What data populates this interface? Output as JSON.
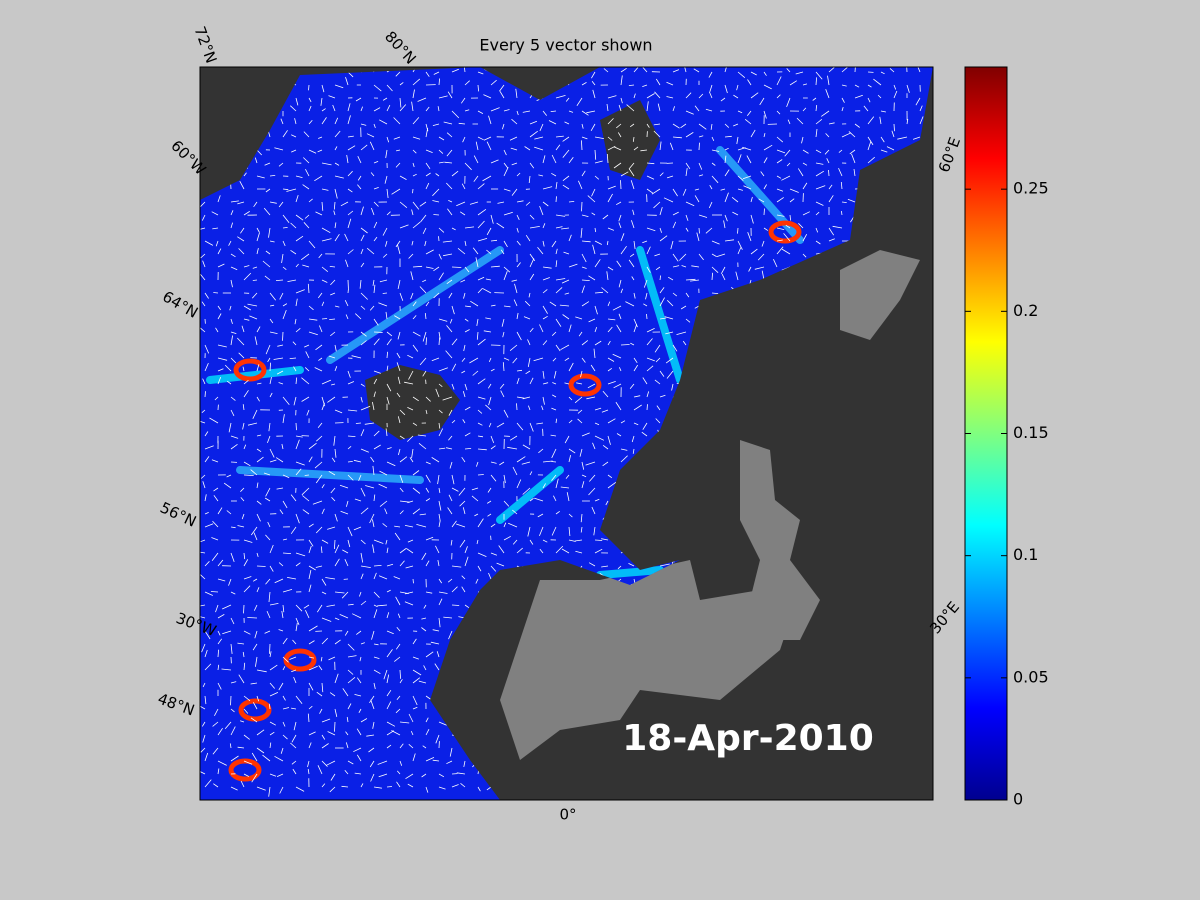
{
  "title": "Every 5 vector shown",
  "map": {
    "graticule_labels": [
      "72°N",
      "80°N",
      "60°W",
      "64°N",
      "56°N",
      "30°W",
      "48°N",
      "0°",
      "30°E",
      "60°E"
    ],
    "date": "18-Apr-2010"
  },
  "colorbar": {
    "colormap": "jet",
    "lim": [
      0,
      0.3
    ],
    "ticks": [
      0,
      0.05,
      0.1,
      0.15,
      0.2,
      0.25
    ]
  }
}
